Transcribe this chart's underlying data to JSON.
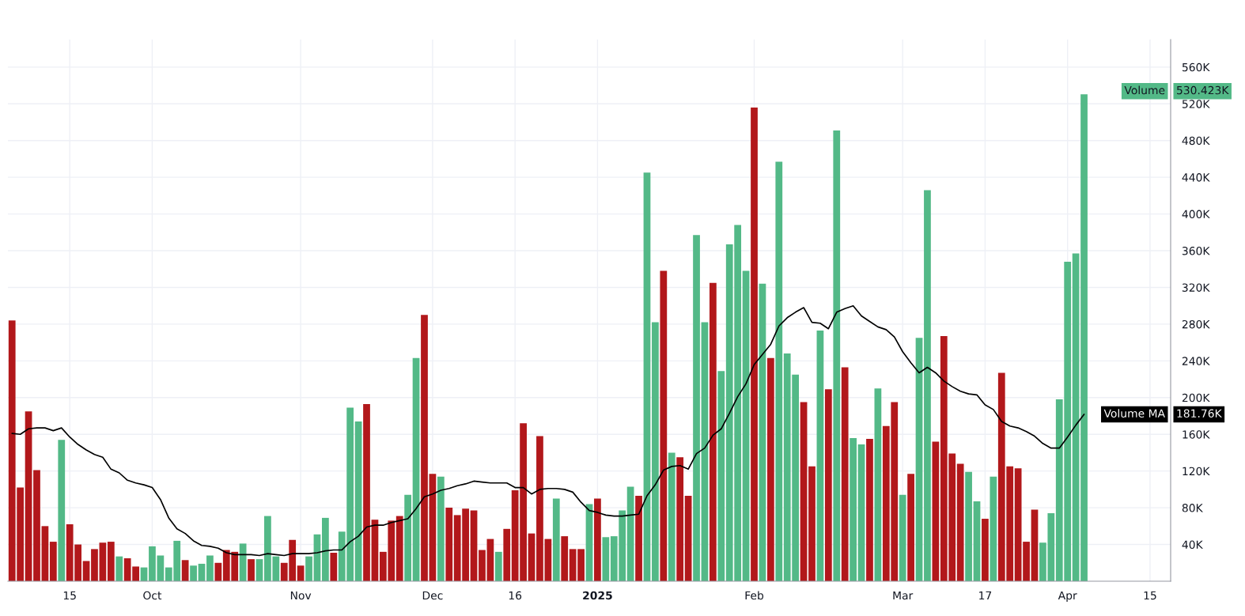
{
  "chart_data": {
    "type": "bar",
    "categories": [
      null,
      null,
      null,
      null,
      null,
      null,
      null,
      "15",
      null,
      null,
      null,
      null,
      null,
      null,
      null,
      null,
      null,
      "Oct",
      null,
      null,
      null,
      null,
      null,
      null,
      null,
      null,
      null,
      null,
      null,
      null,
      null,
      null,
      null,
      null,
      null,
      "Nov",
      null,
      null,
      null,
      null,
      null,
      null,
      null,
      null,
      null,
      null,
      null,
      null,
      null,
      null,
      null,
      "Dec",
      null,
      null,
      null,
      null,
      null,
      null,
      null,
      null,
      null,
      "16",
      null,
      null,
      null,
      null,
      null,
      null,
      null,
      null,
      null,
      "2025",
      null,
      null,
      null,
      null,
      null,
      null,
      null,
      null,
      null,
      null,
      null,
      null,
      null,
      null,
      null,
      null,
      null,
      null,
      "Feb",
      null,
      null,
      null,
      null,
      null,
      null,
      null,
      null,
      null,
      null,
      null,
      null,
      null,
      null,
      null,
      null,
      null,
      "Mar",
      null,
      null,
      null,
      null,
      null,
      null,
      null,
      null,
      null,
      "17",
      null,
      null,
      null,
      null,
      null,
      null,
      null,
      null,
      null,
      "Apr",
      null,
      null,
      null,
      null,
      null,
      null,
      null,
      null,
      null,
      "15",
      null,
      null
    ],
    "series": [
      {
        "name": "Volume",
        "values": [
          284000,
          102000,
          185000,
          121000,
          60000,
          43000,
          154000,
          62000,
          40000,
          22000,
          35000,
          42000,
          43000,
          27000,
          25000,
          16000,
          15000,
          38000,
          28000,
          15000,
          44000,
          23000,
          17000,
          19000,
          28000,
          20000,
          34000,
          32000,
          41000,
          24000,
          24000,
          71000,
          27000,
          20000,
          45000,
          17000,
          27000,
          51000,
          69000,
          31000,
          54000,
          189000,
          174000,
          193000,
          67000,
          32000,
          66000,
          71000,
          94000,
          243000,
          290000,
          117000,
          114000,
          80000,
          72000,
          79000,
          77000,
          34000,
          46000,
          32000,
          57000,
          99000,
          172000,
          52000,
          158000,
          46000,
          90000,
          49000,
          35000,
          35000,
          84000,
          90000,
          48000,
          49000,
          77000,
          103000,
          93000,
          445000,
          282000,
          338000,
          140000,
          135000,
          93000,
          377000,
          282000,
          325000,
          229000,
          367000,
          388000,
          338000,
          516000,
          324000,
          243000,
          457000,
          248000,
          225000,
          195000,
          125000,
          273000,
          209000,
          491000,
          233000,
          156000,
          149000,
          155000,
          210000,
          169000,
          195000,
          94000,
          117000,
          265000,
          426000,
          152000,
          267000,
          139000,
          128000,
          119000,
          87000,
          68000,
          114000,
          227000,
          125000,
          123000,
          43000,
          78000,
          42000,
          74000,
          198000,
          348000,
          357000,
          530423,
          null,
          null,
          null,
          null,
          null,
          null,
          null,
          null,
          null,
          null
        ],
        "colors": [
          "#b2181b",
          "#b2181b",
          "#b2181b",
          "#b2181b",
          "#b2181b",
          "#b2181b",
          "#53b987",
          "#b2181b",
          "#b2181b",
          "#b2181b",
          "#b2181b",
          "#b2181b",
          "#b2181b",
          "#53b987",
          "#b2181b",
          "#b2181b",
          "#53b987",
          "#53b987",
          "#53b987",
          "#53b987",
          "#53b987",
          "#b2181b",
          "#53b987",
          "#53b987",
          "#53b987",
          "#b2181b",
          "#b2181b",
          "#b2181b",
          "#53b987",
          "#b2181b",
          "#53b987",
          "#53b987",
          "#53b987",
          "#b2181b",
          "#b2181b",
          "#b2181b",
          "#53b987",
          "#53b987",
          "#53b987",
          "#b2181b",
          "#53b987",
          "#53b987",
          "#53b987",
          "#b2181b",
          "#b2181b",
          "#b2181b",
          "#b2181b",
          "#b2181b",
          "#53b987",
          "#53b987",
          "#b2181b",
          "#b2181b",
          "#53b987",
          "#b2181b",
          "#b2181b",
          "#b2181b",
          "#b2181b",
          "#b2181b",
          "#b2181b",
          "#53b987",
          "#b2181b",
          "#b2181b",
          "#b2181b",
          "#b2181b",
          "#b2181b",
          "#b2181b",
          "#53b987",
          "#b2181b",
          "#b2181b",
          "#b2181b",
          "#53b987",
          "#b2181b",
          "#53b987",
          "#53b987",
          "#53b987",
          "#53b987",
          "#b2181b",
          "#53b987",
          "#53b987",
          "#b2181b",
          "#53b987",
          "#b2181b",
          "#b2181b",
          "#53b987",
          "#53b987",
          "#b2181b",
          "#53b987",
          "#53b987",
          "#53b987",
          "#53b987",
          "#b2181b",
          "#53b987",
          "#b2181b",
          "#53b987",
          "#53b987",
          "#53b987",
          "#b2181b",
          "#b2181b",
          "#53b987",
          "#b2181b",
          "#53b987",
          "#b2181b",
          "#53b987",
          "#53b987",
          "#b2181b",
          "#53b987",
          "#b2181b",
          "#b2181b",
          "#53b987",
          "#b2181b",
          "#53b987",
          "#53b987",
          "#b2181b",
          "#b2181b",
          "#b2181b",
          "#b2181b",
          "#53b987",
          "#53b987",
          "#b2181b",
          "#53b987",
          "#b2181b",
          "#b2181b",
          "#b2181b",
          "#b2181b",
          "#b2181b",
          "#53b987",
          "#53b987",
          "#53b987",
          "#53b987",
          "#53b987",
          "#53b987",
          null,
          null,
          null,
          null,
          null,
          null,
          null,
          null,
          null,
          null
        ]
      },
      {
        "name": "Volume MA",
        "type": "line",
        "color": "#000000",
        "values": [
          161000,
          160000,
          166000,
          167000,
          167000,
          164000,
          167000,
          157000,
          149000,
          143000,
          138000,
          135000,
          122000,
          118000,
          110000,
          107000,
          105000,
          102000,
          89000,
          69000,
          57000,
          52000,
          44000,
          39000,
          38000,
          36000,
          31000,
          29000,
          29000,
          29000,
          28000,
          30000,
          29000,
          28000,
          30000,
          30000,
          30000,
          31000,
          33000,
          34000,
          34000,
          43000,
          49000,
          59000,
          61000,
          61000,
          64000,
          66000,
          68000,
          79000,
          92000,
          95000,
          99000,
          101000,
          104000,
          106000,
          109000,
          108000,
          107000,
          107000,
          107000,
          102000,
          102000,
          95000,
          100000,
          101000,
          101000,
          100000,
          97000,
          86000,
          77000,
          75000,
          72000,
          71000,
          71000,
          72000,
          73000,
          93000,
          105000,
          121000,
          125000,
          126000,
          122000,
          139000,
          145000,
          159000,
          166000,
          183000,
          201000,
          215000,
          236000,
          247000,
          258000,
          278000,
          287000,
          293000,
          298000,
          282000,
          281000,
          275000,
          293000,
          297000,
          300000,
          289000,
          283000,
          277000,
          274000,
          266000,
          250000,
          238000,
          227000,
          233000,
          227000,
          218000,
          212000,
          207000,
          204000,
          203000,
          192000,
          187000,
          174000,
          169000,
          167000,
          163000,
          158000,
          150000,
          145000,
          145000,
          157000,
          170000,
          181760,
          null,
          null,
          null,
          null,
          null,
          null,
          null,
          null,
          null,
          null
        ]
      }
    ],
    "annotations": [
      "530.423K",
      "181.76K"
    ],
    "ylim": [
      0,
      590000
    ],
    "yticks": [
      {
        "value": 40000,
        "label": "40K"
      },
      {
        "value": 80000,
        "label": "80K"
      },
      {
        "value": 120000,
        "label": "120K"
      },
      {
        "value": 160000,
        "label": "160K"
      },
      {
        "value": 200000,
        "label": "200K"
      },
      {
        "value": 240000,
        "label": "240K"
      },
      {
        "value": 280000,
        "label": "280K"
      },
      {
        "value": 320000,
        "label": "320K"
      },
      {
        "value": 360000,
        "label": "360K"
      },
      {
        "value": 400000,
        "label": "400K"
      },
      {
        "value": 440000,
        "label": "440K"
      },
      {
        "value": 480000,
        "label": "480K"
      },
      {
        "value": 520000,
        "label": "520K"
      },
      {
        "value": 560000,
        "label": "560K"
      }
    ],
    "grid": true
  }
}
